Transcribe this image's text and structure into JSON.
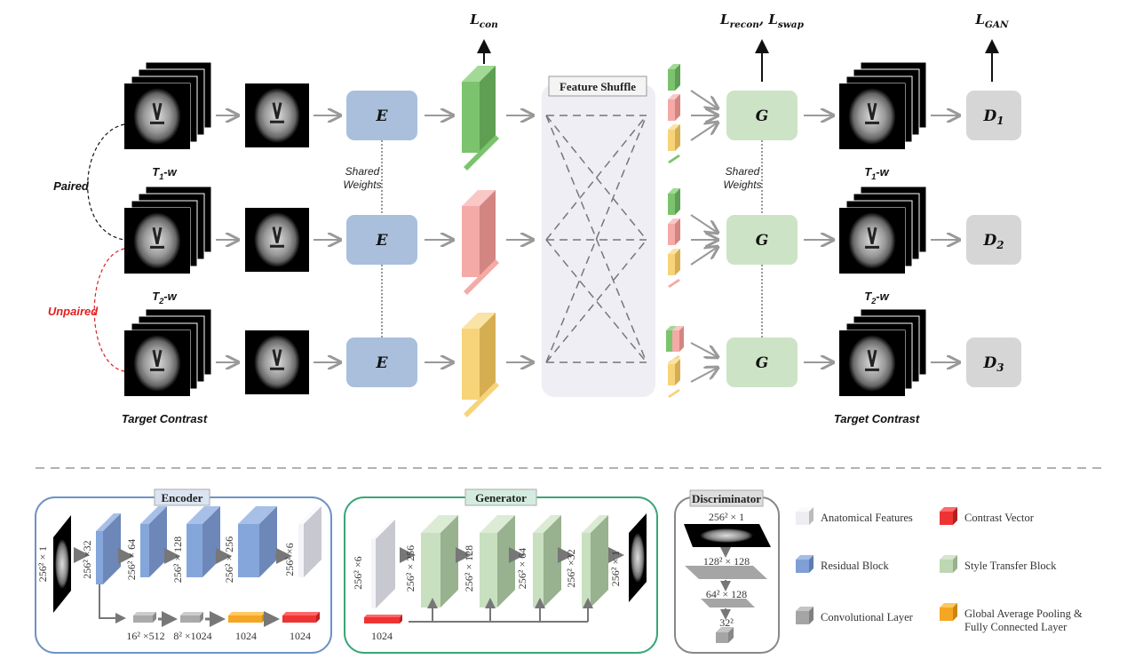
{
  "top": {
    "inputs": [
      {
        "label": "T",
        "sub": "1",
        "suffix": "-w"
      },
      {
        "label": "T",
        "sub": "2",
        "suffix": "-w"
      },
      {
        "label": "Target Contrast",
        "sub": "",
        "suffix": ""
      }
    ],
    "outputs": [
      {
        "label": "T",
        "sub": "1",
        "suffix": "-w"
      },
      {
        "label": "T",
        "sub": "2",
        "suffix": "-w"
      },
      {
        "label": "Target Contrast",
        "sub": "",
        "suffix": ""
      }
    ],
    "paired_label": "Paired",
    "unpaired_label": "Unpaired",
    "encoder_label": "E",
    "generator_label": "G",
    "discriminators": [
      {
        "label": "D",
        "sub": "1"
      },
      {
        "label": "D",
        "sub": "2"
      },
      {
        "label": "D",
        "sub": "3"
      }
    ],
    "shared_weights": [
      "Shared",
      "Weights"
    ],
    "feature_shuffle_title": "Feature Shuffle",
    "losses": {
      "con": {
        "label": "L",
        "sub": "con"
      },
      "recon": {
        "label": "L",
        "sub": "recon",
        "sep": ", "
      },
      "swap": {
        "label": "L",
        "sub": "swap"
      },
      "gan": {
        "label": "L",
        "sub": "GAN"
      }
    },
    "colors": {
      "row1": "#7cc36e",
      "row2": "#f0a5a2",
      "row3": "#f5cf6e",
      "encoder": "#a9bfdc",
      "generator": "#cde3c6",
      "discriminator": "#d6d6d6",
      "unpaired": "#e02020"
    }
  },
  "encoder": {
    "title": "Encoder",
    "input_label": "256² × 1",
    "blocks": [
      "256² ×32",
      "256² × 64",
      "256² × 128",
      "256² × 256",
      "256² ×6"
    ],
    "branch": [
      "16² ×512",
      "8² ×1024",
      "1024",
      "1024"
    ]
  },
  "generator": {
    "title": "Generator",
    "input_label": "256² ×6",
    "blocks": [
      "256² × 256",
      "256² × 128",
      "256² × 64",
      "256² ×32"
    ],
    "output_label": "256² × 1",
    "vector_label": "1024"
  },
  "discriminator": {
    "title": "Discriminator",
    "layers": [
      "256² × 1",
      "128² × 128",
      "64² × 128",
      "32²"
    ]
  },
  "legend": [
    {
      "label": "Anatomical Features",
      "color": "#eeeef2"
    },
    {
      "label": "Contrast Vector",
      "color": "#ee3333"
    },
    {
      "label": "Residual Block",
      "color": "#7f9fd6"
    },
    {
      "label": "Style Transfer Block",
      "color": "#bcd7b2"
    },
    {
      "label": "Convolutional Layer",
      "color": "#a5a5a5"
    },
    {
      "label": "Global Average Pooling &",
      "label2": "Fully Connected Layer",
      "color": "#f5a623"
    }
  ]
}
